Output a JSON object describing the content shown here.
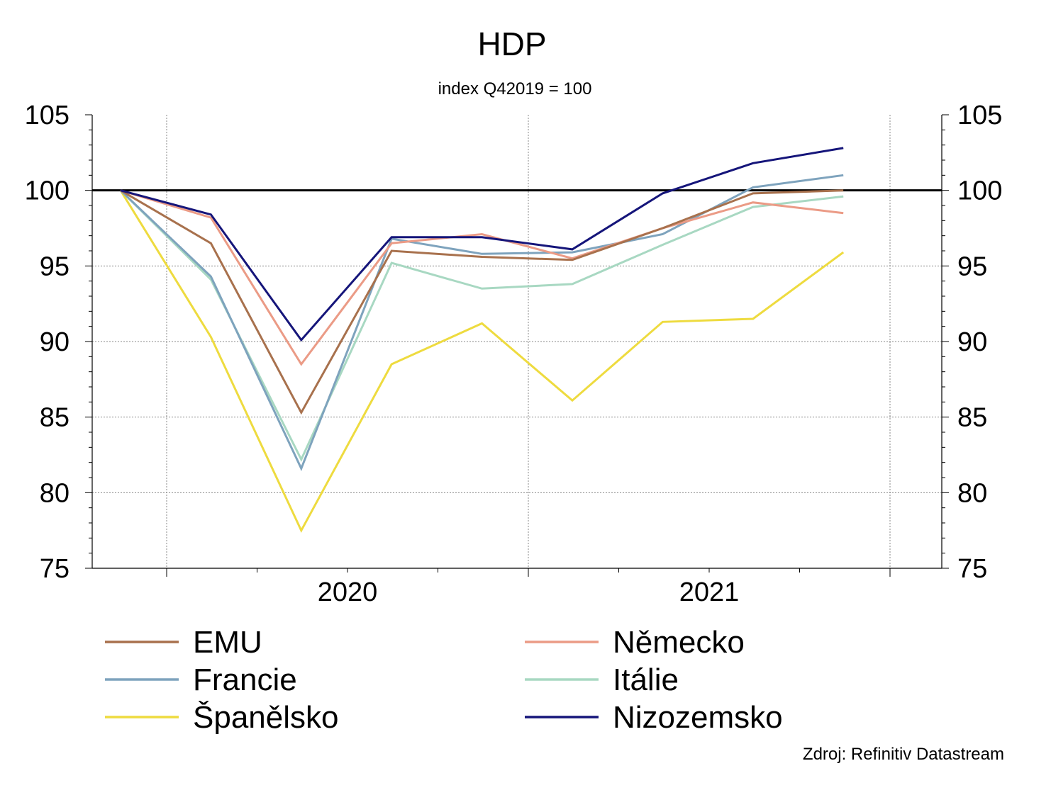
{
  "chart_data": {
    "type": "line",
    "title": "HDP",
    "subtitle": "index Q42019 = 100",
    "source": "Zdroj: Refinitiv Datastream",
    "x": [
      "Q4 2019",
      "Q1 2020",
      "Q2 2020",
      "Q3 2020",
      "Q4 2020",
      "Q1 2021",
      "Q2 2021",
      "Q3 2021",
      "Q4 2021"
    ],
    "x_tick_labels": [
      "2020",
      "2021"
    ],
    "ylim": [
      75,
      105
    ],
    "y_ticks": [
      "75",
      "80",
      "85",
      "90",
      "95",
      "100",
      "105"
    ],
    "reference_line": 100,
    "grid": true,
    "legend_position": "bottom",
    "series": [
      {
        "name": "EMU",
        "color": "#a8714d",
        "values": [
          100,
          96.5,
          85.3,
          96.0,
          95.6,
          95.4,
          97.5,
          99.8,
          100.0
        ]
      },
      {
        "name": "Německo",
        "color": "#eb9b86",
        "values": [
          100,
          98.2,
          88.5,
          96.5,
          97.1,
          95.5,
          97.5,
          99.2,
          98.5
        ]
      },
      {
        "name": "Francie",
        "color": "#7ea3bd",
        "values": [
          100,
          94.3,
          81.6,
          96.8,
          95.8,
          95.9,
          97.1,
          100.2,
          101.0
        ]
      },
      {
        "name": "Itálie",
        "color": "#a8d8c2",
        "values": [
          100,
          94.1,
          82.2,
          95.2,
          93.5,
          93.8,
          96.4,
          98.9,
          99.6
        ]
      },
      {
        "name": "Španělsko",
        "color": "#eedb3f",
        "values": [
          100,
          90.3,
          77.5,
          88.5,
          91.2,
          86.1,
          91.3,
          91.5,
          95.9
        ]
      },
      {
        "name": "Nizozemsko",
        "color": "#15157a",
        "values": [
          100,
          98.4,
          90.1,
          96.9,
          96.9,
          96.1,
          99.8,
          101.8,
          102.8
        ]
      }
    ]
  }
}
